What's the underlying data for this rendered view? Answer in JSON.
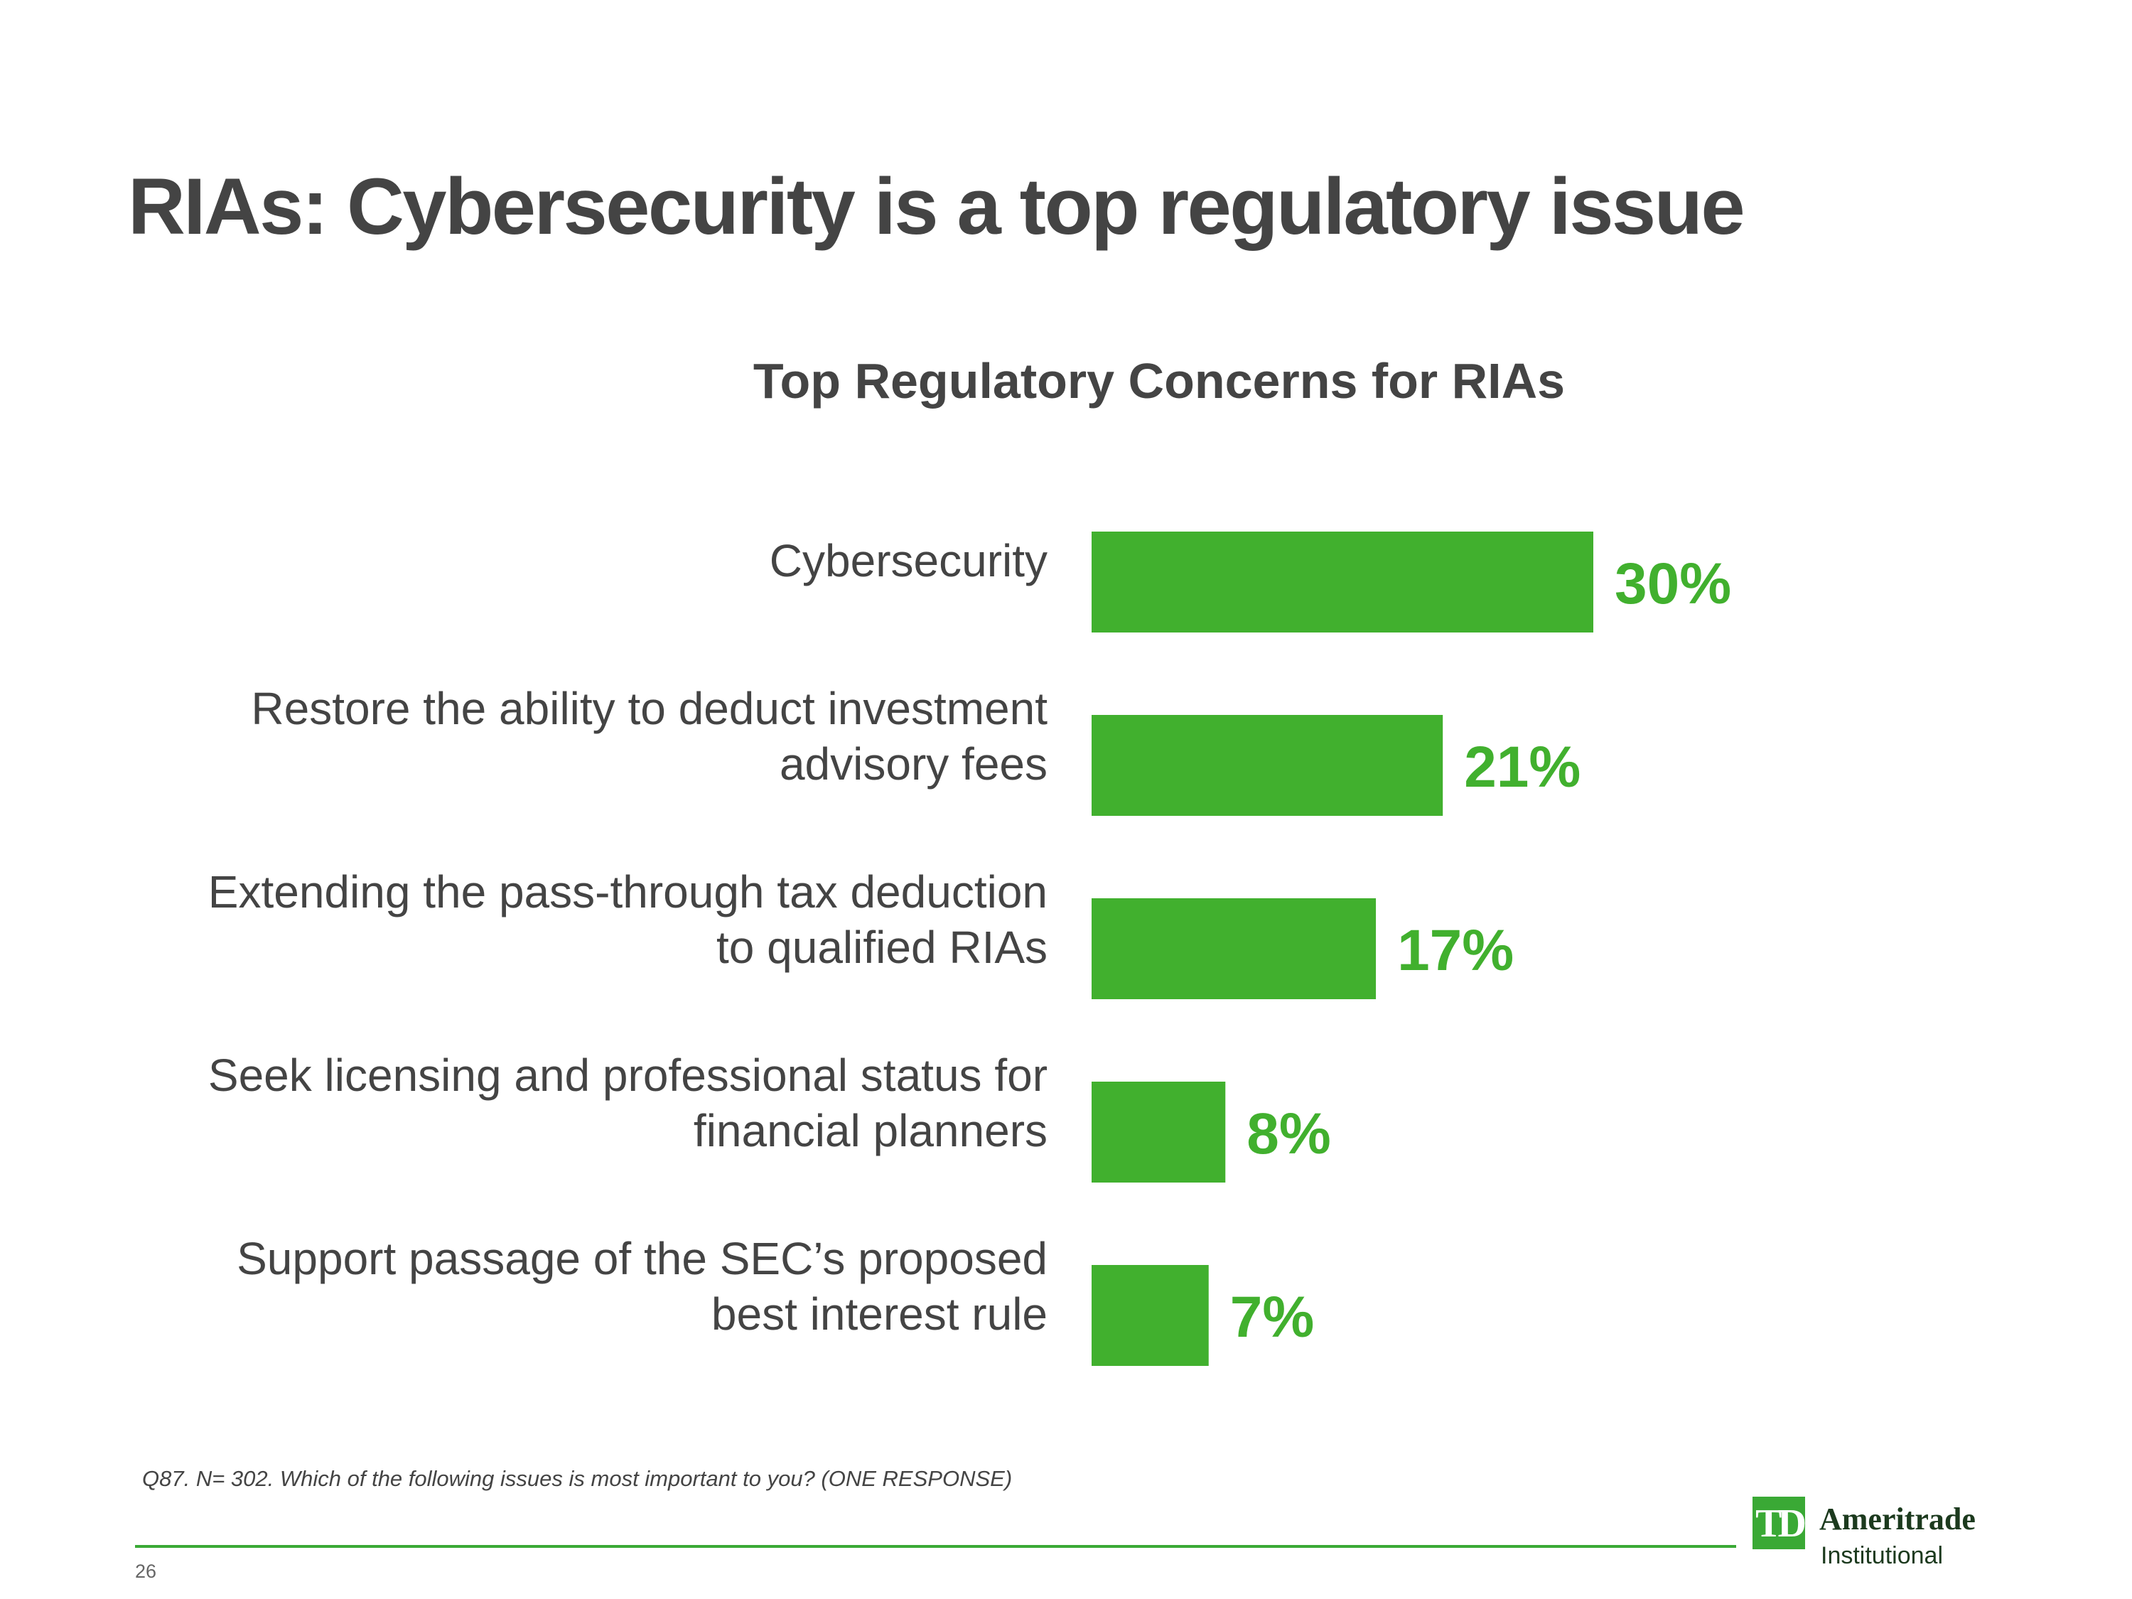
{
  "page": {
    "title": "RIAs: Cybersecurity is a top regulatory issue",
    "footnote": "Q87. N= 302. Which of the following issues is most important to you? (ONE RESPONSE)",
    "page_number": "26"
  },
  "logo": {
    "mark": "TD",
    "name": "Ameritrade",
    "subtitle": "Institutional"
  },
  "colors": {
    "bar": "#41b02e",
    "value_label": "#41b02e",
    "text": "#444444",
    "divider": "#3aa935"
  },
  "chart_data": {
    "type": "bar",
    "orientation": "horizontal",
    "title": "Top Regulatory Concerns for RIAs",
    "xlabel": "",
    "ylabel": "",
    "categories": [
      [
        "Cybersecurity"
      ],
      [
        "Restore the ability to deduct investment",
        "advisory fees"
      ],
      [
        "Extending the pass-through tax deduction",
        "to qualified RIAs"
      ],
      [
        "Seek licensing and professional status for",
        "financial planners"
      ],
      [
        "Support passage of the SEC’s proposed",
        "best interest rule"
      ]
    ],
    "values": [
      30,
      21,
      17,
      8,
      7
    ],
    "value_labels": [
      "30%",
      "21%",
      "17%",
      "8%",
      "7%"
    ],
    "xlim": [
      0,
      30
    ],
    "grid": false,
    "legend": "none"
  }
}
